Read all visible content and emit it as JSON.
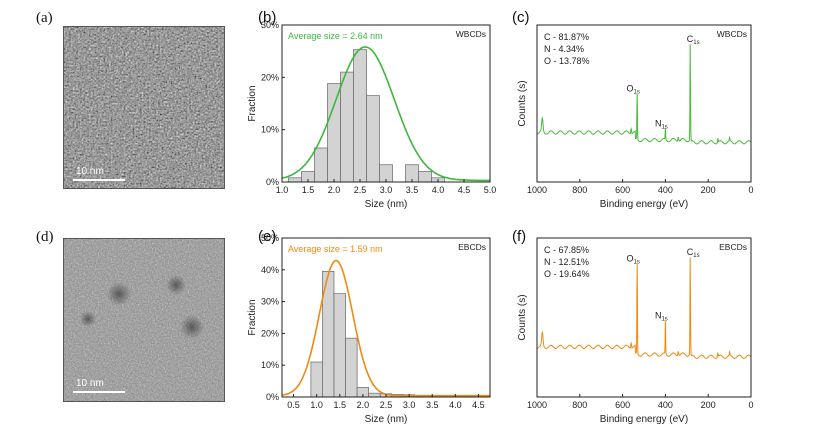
{
  "panels": {
    "a": {
      "label": "(a)",
      "scale_label": "10 nm"
    },
    "d": {
      "label": "(d)",
      "scale_label": "10 nm"
    }
  },
  "chart_data": [
    {
      "id": "b",
      "label": "(b)",
      "type": "bar",
      "title": "",
      "tag": "WBCDs",
      "xlabel": "Size (nm)",
      "ylabel": "Fraction",
      "xlim": [
        1.0,
        5.0
      ],
      "ylim": [
        0,
        30
      ],
      "xticks": [
        "1.0",
        "1.5",
        "2.0",
        "2.5",
        "3.0",
        "3.5",
        "4.0",
        "4.5",
        "5.0"
      ],
      "yticks": [
        "0%",
        "10%",
        "20%",
        "30%"
      ],
      "bin_width": 0.25,
      "bin_centers": [
        1.25,
        1.5,
        1.75,
        2.0,
        2.25,
        2.5,
        2.75,
        3.0,
        3.25,
        3.5,
        3.75,
        4.0,
        4.25,
        4.5,
        4.75
      ],
      "values": [
        0.8,
        2.0,
        6.5,
        18.8,
        21.0,
        25.3,
        16.5,
        3.3,
        0,
        3.3,
        2.0,
        0.8,
        0,
        0,
        0
      ],
      "annotation": "Average size = 2.64 nm",
      "fit": {
        "type": "gaussian",
        "mu": 2.6,
        "sigma": 0.56,
        "amplitude": 25.5,
        "baseline": 0.3,
        "color": "#3db83d"
      }
    },
    {
      "id": "c",
      "label": "(c)",
      "type": "line",
      "tag": "WBCDs",
      "xlabel": "Binding energy (eV)",
      "ylabel": "Counts (s)",
      "xlim": [
        1000,
        0
      ],
      "xticks": [
        "1000",
        "800",
        "600",
        "400",
        "200",
        "0"
      ],
      "composition": [
        "C - 81.87%",
        "N - 4.34%",
        "O - 13.78%"
      ],
      "peaks": [
        {
          "name": "C",
          "sub": "1s",
          "x": 284,
          "height": 0.88
        },
        {
          "name": "O",
          "sub": "1s",
          "x": 532,
          "height": 0.42
        },
        {
          "name": "N",
          "sub": "1s",
          "x": 400,
          "height": 0.1
        }
      ],
      "color": "#4cbb3c"
    },
    {
      "id": "e",
      "label": "(e)",
      "type": "bar",
      "tag": "EBCDs",
      "xlabel": "Size (nm)",
      "ylabel": "Fraction",
      "xlim": [
        0.25,
        4.75
      ],
      "ylim": [
        0,
        50
      ],
      "xticks": [
        "0.5",
        "1.0",
        "1.5",
        "2.0",
        "2.5",
        "3.0",
        "3.5",
        "4.0",
        "4.5"
      ],
      "yticks": [
        "0%",
        "10%",
        "20%",
        "30%",
        "40%",
        "50%"
      ],
      "bin_width": 0.25,
      "bin_centers": [
        0.5,
        0.75,
        1.0,
        1.25,
        1.5,
        1.75,
        2.0,
        2.25,
        2.5,
        2.75,
        3.0,
        3.25,
        3.5,
        3.75,
        4.0,
        4.25,
        4.5
      ],
      "values": [
        0,
        0,
        11.0,
        39.5,
        32.5,
        18.5,
        3.0,
        1.2,
        1.0,
        0.8,
        0.7,
        0.5,
        0.5,
        0.5,
        0.5,
        0.4,
        0.4
      ],
      "annotation": "Average size = 1.59 nm",
      "fit": {
        "type": "gaussian",
        "mu": 1.42,
        "sigma": 0.36,
        "amplitude": 42.5,
        "baseline": 0.4,
        "color": "#f08a14"
      }
    },
    {
      "id": "f",
      "label": "(f)",
      "type": "line",
      "tag": "EBCDs",
      "xlabel": "Binding energy (eV)",
      "ylabel": "Counts (s)",
      "xlim": [
        1000,
        0
      ],
      "xticks": [
        "1000",
        "800",
        "600",
        "400",
        "200",
        "0"
      ],
      "composition": [
        "C - 67.85%",
        "N - 12.51%",
        "O - 19.64%"
      ],
      "peaks": [
        {
          "name": "C",
          "sub": "1s",
          "x": 284,
          "height": 0.88
        },
        {
          "name": "O",
          "sub": "1s",
          "x": 532,
          "height": 0.82
        },
        {
          "name": "N",
          "sub": "1s",
          "x": 400,
          "height": 0.3
        }
      ],
      "color": "#f08a14"
    }
  ]
}
